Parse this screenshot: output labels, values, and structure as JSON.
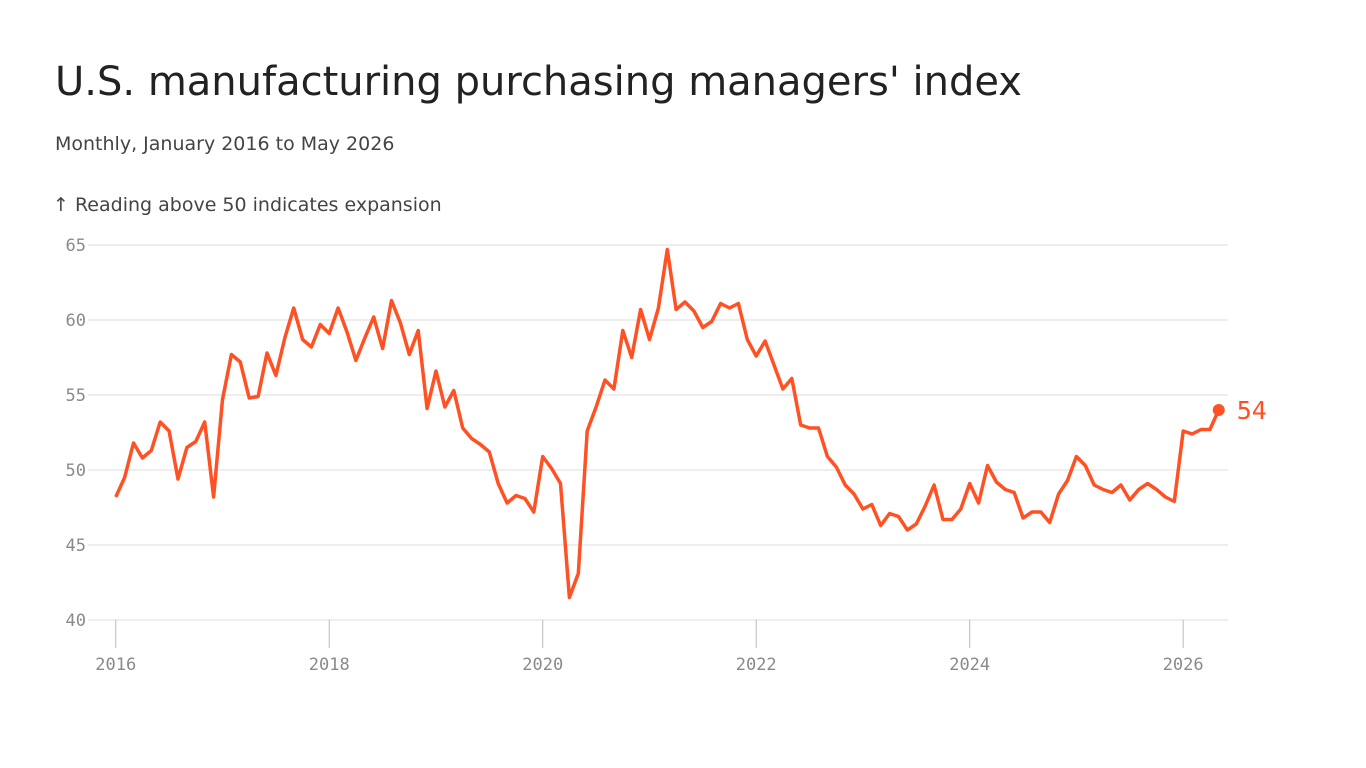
{
  "chart_data": {
    "type": "line",
    "title": "U.S. manufacturing purchasing managers' index",
    "subtitle": "Monthly, January 2016 to May 2026",
    "annotation": "↑ Reading above 50 indicates expansion",
    "x": [
      "2016-01",
      "2016-02",
      "2016-03",
      "2016-04",
      "2016-05",
      "2016-06",
      "2016-07",
      "2016-08",
      "2016-09",
      "2016-10",
      "2016-11",
      "2016-12",
      "2017-01",
      "2017-02",
      "2017-03",
      "2017-04",
      "2017-05",
      "2017-06",
      "2017-07",
      "2017-08",
      "2017-09",
      "2017-10",
      "2017-11",
      "2017-12",
      "2018-01",
      "2018-02",
      "2018-03",
      "2018-04",
      "2018-05",
      "2018-06",
      "2018-07",
      "2018-08",
      "2018-09",
      "2018-10",
      "2018-11",
      "2018-12",
      "2019-01",
      "2019-02",
      "2019-03",
      "2019-04",
      "2019-05",
      "2019-06",
      "2019-07",
      "2019-08",
      "2019-09",
      "2019-10",
      "2019-11",
      "2019-12",
      "2020-01",
      "2020-02",
      "2020-03",
      "2020-04",
      "2020-05",
      "2020-06",
      "2020-07",
      "2020-08",
      "2020-09",
      "2020-10",
      "2020-11",
      "2020-12",
      "2021-01",
      "2021-02",
      "2021-03",
      "2021-04",
      "2021-05",
      "2021-06",
      "2021-07",
      "2021-08",
      "2021-09",
      "2021-10",
      "2021-11",
      "2021-12",
      "2022-01",
      "2022-02",
      "2022-03",
      "2022-04",
      "2022-05",
      "2022-06",
      "2022-07",
      "2022-08",
      "2022-09",
      "2022-10",
      "2022-11",
      "2022-12",
      "2023-01",
      "2023-02",
      "2023-03",
      "2023-04",
      "2023-05",
      "2023-06",
      "2023-07",
      "2023-08",
      "2023-09",
      "2023-10",
      "2023-11",
      "2023-12",
      "2024-01",
      "2024-02",
      "2024-03",
      "2024-04",
      "2024-05",
      "2024-06",
      "2024-07",
      "2024-08",
      "2024-09",
      "2024-10",
      "2024-11",
      "2024-12",
      "2025-01",
      "2025-02",
      "2025-03",
      "2025-04",
      "2025-05",
      "2025-06",
      "2025-07",
      "2025-08",
      "2025-09",
      "2025-10",
      "2025-11",
      "2025-12",
      "2026-01",
      "2026-02",
      "2026-03",
      "2026-04",
      "2026-05"
    ],
    "series": [
      {
        "name": "PMI",
        "color": "#ff5124",
        "values": [
          48.2,
          49.5,
          51.8,
          50.8,
          51.3,
          53.2,
          52.6,
          49.4,
          51.5,
          51.9,
          53.2,
          48.2,
          54.7,
          57.7,
          57.2,
          54.8,
          54.9,
          57.8,
          56.3,
          58.8,
          60.8,
          58.7,
          58.2,
          59.7,
          59.1,
          60.8,
          59.2,
          57.3,
          58.8,
          60.2,
          58.1,
          61.3,
          59.8,
          57.7,
          59.3,
          54.1,
          56.6,
          54.2,
          55.3,
          52.8,
          52.1,
          51.7,
          51.2,
          49.1,
          47.8,
          48.3,
          48.1,
          47.2,
          50.9,
          50.1,
          49.1,
          41.5,
          43.1,
          52.6,
          54.2,
          56.0,
          55.4,
          59.3,
          57.5,
          60.7,
          58.7,
          60.8,
          64.7,
          60.7,
          61.2,
          60.6,
          59.5,
          59.9,
          61.1,
          60.8,
          61.1,
          58.7,
          57.6,
          58.6,
          57.0,
          55.4,
          56.1,
          53.0,
          52.8,
          52.8,
          50.9,
          50.2,
          49.0,
          48.4,
          47.4,
          47.7,
          46.3,
          47.1,
          46.9,
          46.0,
          46.4,
          47.6,
          49.0,
          46.7,
          46.7,
          47.4,
          49.1,
          47.8,
          50.3,
          49.2,
          48.7,
          48.5,
          46.8,
          47.2,
          47.2,
          46.5,
          48.4,
          49.3,
          50.9,
          50.3,
          49.0,
          48.7,
          48.5,
          49.0,
          48.0,
          48.7,
          49.1,
          48.7,
          48.2,
          47.9,
          52.6,
          52.4,
          52.7,
          52.7,
          54
        ]
      }
    ],
    "xlim": [
      2015.74,
      2026.42
    ],
    "xticks": [
      2016,
      2018,
      2020,
      2022,
      2024,
      2026
    ],
    "ylim": [
      40,
      65
    ],
    "yticks": [
      40,
      45,
      50,
      55,
      60,
      65
    ],
    "grid": true
  }
}
